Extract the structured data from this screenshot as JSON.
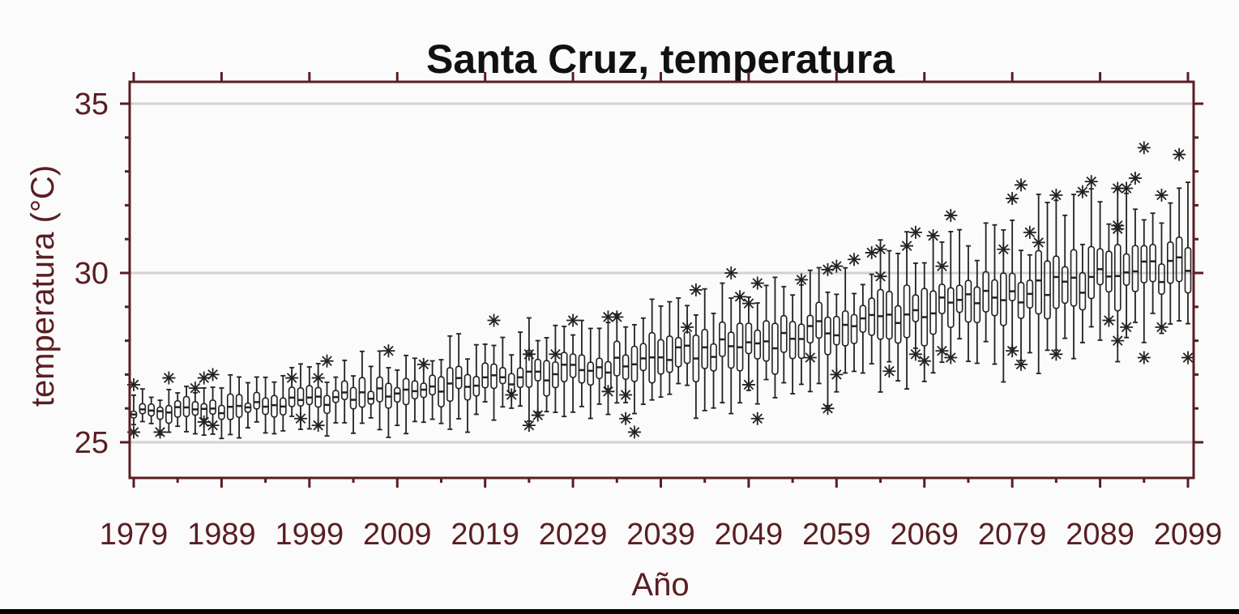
{
  "chart_data": {
    "type": "boxplot",
    "title": "Santa Cruz, temperatura",
    "xlabel": "Año",
    "ylabel": "temperatura (°C)",
    "xlim": [
      1979,
      2099
    ],
    "ylim": [
      24,
      35.5
    ],
    "x_ticks": [
      1979,
      1989,
      1999,
      2009,
      2019,
      2029,
      2039,
      2049,
      2059,
      2069,
      2079,
      2089,
      2099
    ],
    "y_ticks": [
      25,
      30,
      35
    ],
    "gridlines_y": [
      25,
      30,
      35
    ],
    "outlier_marker": "asterisk",
    "colors": {
      "axis": "#5a1e22",
      "marks": "#222222",
      "grid": "#d9cfd0"
    },
    "trend": [
      {
        "year": 1979,
        "median": 25.9
      },
      {
        "year": 1989,
        "median": 26.0
      },
      {
        "year": 1999,
        "median": 26.2
      },
      {
        "year": 2009,
        "median": 26.5
      },
      {
        "year": 2019,
        "median": 26.8
      },
      {
        "year": 2029,
        "median": 27.1
      },
      {
        "year": 2039,
        "median": 27.5
      },
      {
        "year": 2049,
        "median": 27.9
      },
      {
        "year": 2059,
        "median": 28.4
      },
      {
        "year": 2069,
        "median": 28.9
      },
      {
        "year": 2079,
        "median": 29.4
      },
      {
        "year": 2089,
        "median": 29.8
      },
      {
        "year": 2099,
        "median": 30.2
      }
    ],
    "outliers": [
      {
        "x": 1979,
        "y": 26.7
      },
      {
        "x": 1979,
        "y": 25.3
      },
      {
        "x": 1982,
        "y": 25.3
      },
      {
        "x": 1983,
        "y": 26.9
      },
      {
        "x": 1986,
        "y": 26.6
      },
      {
        "x": 1987,
        "y": 26.9
      },
      {
        "x": 1987,
        "y": 25.6
      },
      {
        "x": 1988,
        "y": 27.0
      },
      {
        "x": 1988,
        "y": 25.5
      },
      {
        "x": 1997,
        "y": 26.9
      },
      {
        "x": 1998,
        "y": 25.7
      },
      {
        "x": 2000,
        "y": 26.9
      },
      {
        "x": 2000,
        "y": 25.5
      },
      {
        "x": 2001,
        "y": 27.4
      },
      {
        "x": 2008,
        "y": 27.7
      },
      {
        "x": 2012,
        "y": 27.3
      },
      {
        "x": 2020,
        "y": 28.6
      },
      {
        "x": 2022,
        "y": 26.4
      },
      {
        "x": 2024,
        "y": 27.6
      },
      {
        "x": 2024,
        "y": 25.5
      },
      {
        "x": 2025,
        "y": 25.8
      },
      {
        "x": 2027,
        "y": 27.6
      },
      {
        "x": 2029,
        "y": 28.6
      },
      {
        "x": 2033,
        "y": 28.7
      },
      {
        "x": 2033,
        "y": 26.5
      },
      {
        "x": 2034,
        "y": 28.7
      },
      {
        "x": 2035,
        "y": 26.4
      },
      {
        "x": 2035,
        "y": 25.7
      },
      {
        "x": 2036,
        "y": 25.3
      },
      {
        "x": 2042,
        "y": 28.4
      },
      {
        "x": 2043,
        "y": 29.5
      },
      {
        "x": 2047,
        "y": 30.0
      },
      {
        "x": 2048,
        "y": 29.3
      },
      {
        "x": 2049,
        "y": 29.1
      },
      {
        "x": 2049,
        "y": 26.7
      },
      {
        "x": 2050,
        "y": 29.7
      },
      {
        "x": 2050,
        "y": 25.7
      },
      {
        "x": 2055,
        "y": 29.8
      },
      {
        "x": 2056,
        "y": 27.5
      },
      {
        "x": 2058,
        "y": 30.1
      },
      {
        "x": 2058,
        "y": 26.0
      },
      {
        "x": 2059,
        "y": 30.2
      },
      {
        "x": 2059,
        "y": 27.0
      },
      {
        "x": 2061,
        "y": 30.4
      },
      {
        "x": 2063,
        "y": 30.6
      },
      {
        "x": 2064,
        "y": 30.7
      },
      {
        "x": 2064,
        "y": 29.9
      },
      {
        "x": 2065,
        "y": 27.1
      },
      {
        "x": 2067,
        "y": 30.8
      },
      {
        "x": 2068,
        "y": 31.2
      },
      {
        "x": 2068,
        "y": 27.6
      },
      {
        "x": 2069,
        "y": 27.4
      },
      {
        "x": 2070,
        "y": 31.1
      },
      {
        "x": 2071,
        "y": 30.2
      },
      {
        "x": 2071,
        "y": 27.7
      },
      {
        "x": 2072,
        "y": 31.7
      },
      {
        "x": 2072,
        "y": 27.5
      },
      {
        "x": 2078,
        "y": 30.7
      },
      {
        "x": 2079,
        "y": 32.2
      },
      {
        "x": 2079,
        "y": 27.7
      },
      {
        "x": 2080,
        "y": 32.6
      },
      {
        "x": 2080,
        "y": 27.3
      },
      {
        "x": 2081,
        "y": 31.2
      },
      {
        "x": 2082,
        "y": 30.9
      },
      {
        "x": 2084,
        "y": 32.3
      },
      {
        "x": 2084,
        "y": 27.6
      },
      {
        "x": 2087,
        "y": 32.4
      },
      {
        "x": 2088,
        "y": 32.7
      },
      {
        "x": 2090,
        "y": 28.6
      },
      {
        "x": 2091,
        "y": 32.5
      },
      {
        "x": 2091,
        "y": 31.4
      },
      {
        "x": 2091,
        "y": 31.3
      },
      {
        "x": 2091,
        "y": 28.0
      },
      {
        "x": 2092,
        "y": 32.5
      },
      {
        "x": 2092,
        "y": 28.4
      },
      {
        "x": 2093,
        "y": 32.8
      },
      {
        "x": 2094,
        "y": 33.7
      },
      {
        "x": 2094,
        "y": 27.5
      },
      {
        "x": 2096,
        "y": 32.3
      },
      {
        "x": 2096,
        "y": 28.4
      },
      {
        "x": 2098,
        "y": 33.5
      },
      {
        "x": 2099,
        "y": 27.5
      }
    ]
  }
}
